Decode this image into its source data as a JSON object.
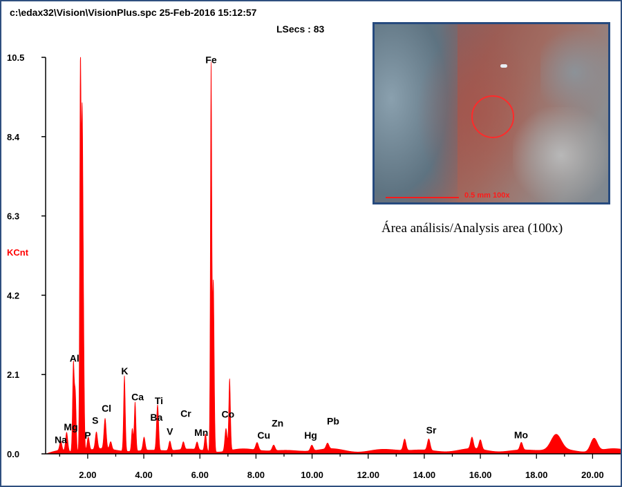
{
  "header": {
    "file_info": "c:\\edax32\\Vision\\VisionPlus.spc  25-Feb-2016 15:12:57",
    "lsecs": "LSecs :  83"
  },
  "inset": {
    "scale_text": "0.5 mm  100x",
    "caption": "Área análisis/Analysis area (100x)"
  },
  "colors": {
    "spectrum": "#ff0000",
    "frame": "#2f4f7f",
    "axis": "#000000"
  },
  "chart_data": {
    "type": "area",
    "title": "",
    "ylabel": "KCnt",
    "xlabel": "",
    "xlim": [
      0.5,
      21.0
    ],
    "ylim": [
      0,
      10.5
    ],
    "x_ticks": [
      2.0,
      4.0,
      6.0,
      8.0,
      10.0,
      12.0,
      14.0,
      16.0,
      18.0,
      20.0
    ],
    "x_tick_labels": [
      "2.00",
      "4.00",
      "6.00",
      "8.00",
      "10.00",
      "12.00",
      "14.00",
      "16.00",
      "18.00",
      "20.00"
    ],
    "y_ticks": [
      0,
      2.1,
      4.2,
      6.3,
      8.4,
      10.5
    ],
    "y_tick_labels": [
      "0.0",
      "2.1",
      "4.2",
      "6.3",
      "8.4",
      "10.5"
    ],
    "background": 0.12,
    "peaks": [
      {
        "x": 1.04,
        "y": 0.25,
        "w": 0.04
      },
      {
        "x": 1.25,
        "y": 0.5,
        "w": 0.04
      },
      {
        "x": 1.49,
        "y": 2.3,
        "w": 0.03
      },
      {
        "x": 1.56,
        "y": 1.5,
        "w": 0.03
      },
      {
        "x": 1.74,
        "y": 10.3,
        "w": 0.025
      },
      {
        "x": 1.8,
        "y": 7.0,
        "w": 0.025
      },
      {
        "x": 1.84,
        "y": 4.0,
        "w": 0.03
      },
      {
        "x": 2.02,
        "y": 0.35,
        "w": 0.04
      },
      {
        "x": 2.31,
        "y": 0.45,
        "w": 0.04
      },
      {
        "x": 2.62,
        "y": 0.8,
        "w": 0.04
      },
      {
        "x": 2.82,
        "y": 0.2,
        "w": 0.04
      },
      {
        "x": 3.31,
        "y": 2.0,
        "w": 0.03
      },
      {
        "x": 3.59,
        "y": 0.6,
        "w": 0.03
      },
      {
        "x": 3.69,
        "y": 1.3,
        "w": 0.03
      },
      {
        "x": 4.01,
        "y": 0.35,
        "w": 0.04
      },
      {
        "x": 4.47,
        "y": 0.7,
        "w": 0.03
      },
      {
        "x": 4.51,
        "y": 0.8,
        "w": 0.03
      },
      {
        "x": 4.93,
        "y": 0.25,
        "w": 0.04
      },
      {
        "x": 5.41,
        "y": 0.2,
        "w": 0.04
      },
      {
        "x": 5.9,
        "y": 0.2,
        "w": 0.04
      },
      {
        "x": 6.2,
        "y": 0.45,
        "w": 0.035
      },
      {
        "x": 6.4,
        "y": 10.2,
        "w": 0.025
      },
      {
        "x": 6.48,
        "y": 4.5,
        "w": 0.03
      },
      {
        "x": 6.93,
        "y": 0.6,
        "w": 0.04
      },
      {
        "x": 7.06,
        "y": 1.9,
        "w": 0.03
      },
      {
        "x": 8.04,
        "y": 0.2,
        "w": 0.05
      },
      {
        "x": 8.63,
        "y": 0.15,
        "w": 0.05
      },
      {
        "x": 9.99,
        "y": 0.15,
        "w": 0.05
      },
      {
        "x": 10.55,
        "y": 0.15,
        "w": 0.05
      },
      {
        "x": 13.3,
        "y": 0.3,
        "w": 0.05
      },
      {
        "x": 14.16,
        "y": 0.3,
        "w": 0.05
      },
      {
        "x": 15.7,
        "y": 0.3,
        "w": 0.05
      },
      {
        "x": 16.0,
        "y": 0.25,
        "w": 0.05
      },
      {
        "x": 17.46,
        "y": 0.2,
        "w": 0.05
      },
      {
        "x": 18.7,
        "y": 0.4,
        "w": 0.18
      },
      {
        "x": 20.05,
        "y": 0.35,
        "w": 0.12
      }
    ],
    "element_labels": [
      {
        "name": "Na",
        "x": 1.04,
        "y": 0.28
      },
      {
        "name": "Mg",
        "x": 1.4,
        "y": 0.62
      },
      {
        "name": "P",
        "x": 2.0,
        "y": 0.4
      },
      {
        "name": "S",
        "x": 2.27,
        "y": 0.8
      },
      {
        "name": "Cl",
        "x": 2.67,
        "y": 1.12
      },
      {
        "name": "Al",
        "x": 1.53,
        "y": 2.44
      },
      {
        "name": "K",
        "x": 3.32,
        "y": 2.1
      },
      {
        "name": "Ca",
        "x": 3.78,
        "y": 1.42
      },
      {
        "name": "Ti",
        "x": 4.54,
        "y": 1.32
      },
      {
        "name": "Ba",
        "x": 4.45,
        "y": 0.88
      },
      {
        "name": "V",
        "x": 4.93,
        "y": 0.5
      },
      {
        "name": "Cr",
        "x": 5.5,
        "y": 0.98
      },
      {
        "name": "Mn",
        "x": 6.05,
        "y": 0.48
      },
      {
        "name": "Fe",
        "x": 6.4,
        "y": 10.34
      },
      {
        "name": "Co",
        "x": 7.0,
        "y": 0.96
      },
      {
        "name": "Cu",
        "x": 8.28,
        "y": 0.4
      },
      {
        "name": "Zn",
        "x": 8.77,
        "y": 0.72
      },
      {
        "name": "Hg",
        "x": 9.95,
        "y": 0.4
      },
      {
        "name": "Pb",
        "x": 10.75,
        "y": 0.78
      },
      {
        "name": "Sr",
        "x": 14.25,
        "y": 0.54
      },
      {
        "name": "Mo",
        "x": 17.45,
        "y": 0.41
      }
    ]
  }
}
